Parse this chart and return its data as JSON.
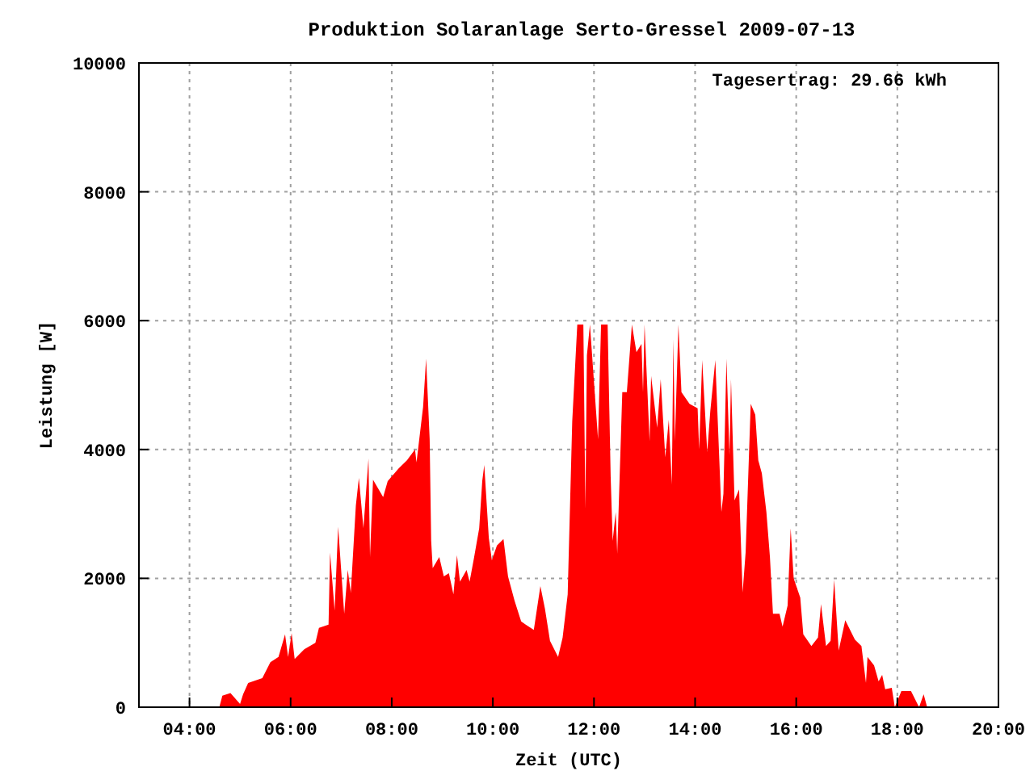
{
  "chart_data": {
    "type": "area",
    "title": "Produktion Solaranlage Serto-Gressel 2009-07-13",
    "xlabel": "Zeit (UTC)",
    "ylabel": "Leistung [W]",
    "annotations": [
      "Tagesertrag: 29.66 kWh"
    ],
    "xlim": [
      3,
      20
    ],
    "xticks": [
      {
        "value": 4,
        "label": "04:00"
      },
      {
        "value": 6,
        "label": "06:00"
      },
      {
        "value": 8,
        "label": "08:00"
      },
      {
        "value": 10,
        "label": "10:00"
      },
      {
        "value": 12,
        "label": "12:00"
      },
      {
        "value": 14,
        "label": "14:00"
      },
      {
        "value": 16,
        "label": "16:00"
      },
      {
        "value": 18,
        "label": "18:00"
      },
      {
        "value": 20,
        "label": "20:00"
      }
    ],
    "ylim": [
      0,
      10000
    ],
    "yticks": [
      0,
      2000,
      4000,
      6000,
      8000,
      10000
    ],
    "grid": true,
    "series": [
      {
        "color": "#ff0000",
        "x": [
          4.59,
          4.65,
          4.81,
          5.0,
          5.06,
          5.16,
          5.44,
          5.6,
          5.76,
          5.89,
          5.95,
          6.02,
          6.08,
          6.27,
          6.49,
          6.56,
          6.75,
          6.78,
          6.87,
          6.94,
          7.06,
          7.13,
          7.19,
          7.29,
          7.35,
          7.44,
          7.54,
          7.57,
          7.63,
          7.83,
          7.92,
          8.14,
          8.3,
          8.46,
          8.49,
          8.62,
          8.68,
          8.75,
          8.78,
          8.81,
          8.94,
          9.03,
          9.13,
          9.22,
          9.29,
          9.35,
          9.48,
          9.54,
          9.63,
          9.73,
          9.79,
          9.83,
          9.92,
          9.98,
          10.08,
          10.21,
          10.3,
          10.43,
          10.56,
          10.65,
          10.81,
          10.94,
          11.03,
          11.13,
          11.29,
          11.38,
          11.48,
          11.57,
          11.67,
          11.79,
          11.83,
          11.86,
          11.92,
          12.08,
          12.14,
          12.27,
          12.33,
          12.37,
          12.43,
          12.46,
          12.56,
          12.65,
          12.75,
          12.84,
          12.94,
          12.97,
          13.0,
          13.1,
          13.13,
          13.25,
          13.32,
          13.41,
          13.48,
          13.54,
          13.57,
          13.6,
          13.67,
          13.73,
          13.89,
          14.05,
          14.08,
          14.14,
          14.24,
          14.3,
          14.4,
          14.52,
          14.56,
          14.62,
          14.68,
          14.71,
          14.78,
          14.87,
          14.94,
          15.0,
          15.1,
          15.19,
          15.25,
          15.32,
          15.41,
          15.48,
          15.54,
          15.67,
          15.73,
          15.83,
          15.89,
          15.95,
          16.08,
          16.14,
          16.3,
          16.43,
          16.49,
          16.59,
          16.68,
          16.75,
          16.84,
          16.97,
          17.16,
          17.29,
          17.38,
          17.41,
          17.54,
          17.63,
          17.7,
          17.76,
          17.89,
          17.95,
          18.08,
          18.27,
          18.43,
          18.52,
          18.59
        ],
        "values": [
          0,
          180,
          220,
          50,
          200,
          375,
          450,
          700,
          780,
          1130,
          780,
          1150,
          750,
          900,
          1000,
          1230,
          1280,
          2400,
          1500,
          2800,
          1450,
          2130,
          1780,
          3130,
          3560,
          2780,
          3860,
          2330,
          3530,
          3260,
          3510,
          3710,
          3830,
          4000,
          3800,
          4660,
          5410,
          4160,
          2580,
          2160,
          2330,
          2030,
          2080,
          1750,
          2360,
          1950,
          2130,
          1950,
          2330,
          2780,
          3510,
          3760,
          2630,
          2280,
          2510,
          2610,
          2030,
          1650,
          1330,
          1280,
          1200,
          1880,
          1530,
          1030,
          780,
          1080,
          1750,
          4440,
          5940,
          5940,
          3080,
          5460,
          5940,
          4160,
          5940,
          5940,
          3580,
          2580,
          3030,
          2380,
          4890,
          4890,
          5940,
          5510,
          5640,
          4890,
          5940,
          4130,
          5140,
          4340,
          5090,
          3880,
          4460,
          3460,
          5710,
          4130,
          5940,
          4890,
          4710,
          4640,
          4000,
          5390,
          3960,
          4590,
          5390,
          3030,
          3310,
          5410,
          3910,
          5090,
          3210,
          3380,
          1780,
          2410,
          4710,
          4540,
          3830,
          3630,
          3030,
          2330,
          1450,
          1450,
          1250,
          1580,
          2780,
          2000,
          1700,
          1130,
          950,
          1080,
          1600,
          950,
          1030,
          1980,
          880,
          1350,
          1050,
          950,
          375,
          780,
          650,
          400,
          500,
          280,
          300,
          0,
          250,
          250,
          0,
          200,
          0
        ]
      }
    ]
  }
}
